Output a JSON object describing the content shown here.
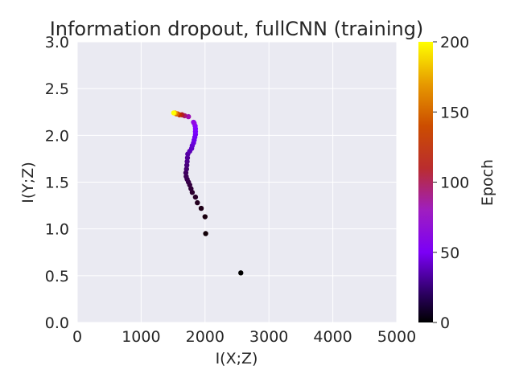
{
  "chart_data": {
    "type": "scatter",
    "title": "Information dropout, fullCNN (training)",
    "xlabel": "I(X;Z)",
    "ylabel": "I(Y;Z)",
    "xlim": [
      0,
      5000
    ],
    "ylim": [
      0,
      3.0
    ],
    "xticks": [
      0,
      1000,
      2000,
      3000,
      4000,
      5000
    ],
    "xtick_labels": [
      "0",
      "1000",
      "2000",
      "3000",
      "4000",
      "5000"
    ],
    "yticks": [
      0,
      0.5,
      1.0,
      1.5,
      2.0,
      2.5,
      3.0
    ],
    "ytick_labels": [
      "0.0",
      "0.5",
      "1.0",
      "1.5",
      "2.0",
      "2.5",
      "3.0"
    ],
    "grid": true,
    "background": "#EAEAF2",
    "colorbar": {
      "label": "Epoch",
      "range": [
        0,
        200
      ],
      "ticks": [
        0,
        50,
        100,
        150,
        200
      ],
      "tick_labels": [
        "0",
        "50",
        "100",
        "150",
        "200"
      ],
      "colormap": "gnuplot"
    },
    "points": [
      {
        "x": 2560,
        "y": 0.53,
        "epoch": 0
      },
      {
        "x": 2010,
        "y": 0.95,
        "epoch": 1
      },
      {
        "x": 2000,
        "y": 1.13,
        "epoch": 2
      },
      {
        "x": 1940,
        "y": 1.22,
        "epoch": 3
      },
      {
        "x": 1880,
        "y": 1.28,
        "epoch": 4
      },
      {
        "x": 1850,
        "y": 1.34,
        "epoch": 5
      },
      {
        "x": 1800,
        "y": 1.39,
        "epoch": 6
      },
      {
        "x": 1780,
        "y": 1.43,
        "epoch": 7
      },
      {
        "x": 1760,
        "y": 1.47,
        "epoch": 8
      },
      {
        "x": 1740,
        "y": 1.5,
        "epoch": 9
      },
      {
        "x": 1720,
        "y": 1.53,
        "epoch": 10
      },
      {
        "x": 1705,
        "y": 1.56,
        "epoch": 11
      },
      {
        "x": 1700,
        "y": 1.6,
        "epoch": 12
      },
      {
        "x": 1710,
        "y": 1.64,
        "epoch": 14
      },
      {
        "x": 1715,
        "y": 1.68,
        "epoch": 16
      },
      {
        "x": 1720,
        "y": 1.72,
        "epoch": 18
      },
      {
        "x": 1725,
        "y": 1.76,
        "epoch": 20
      },
      {
        "x": 1730,
        "y": 1.8,
        "epoch": 22
      },
      {
        "x": 1760,
        "y": 1.83,
        "epoch": 25
      },
      {
        "x": 1790,
        "y": 1.86,
        "epoch": 28
      },
      {
        "x": 1800,
        "y": 1.89,
        "epoch": 30
      },
      {
        "x": 1820,
        "y": 1.92,
        "epoch": 33
      },
      {
        "x": 1830,
        "y": 1.95,
        "epoch": 36
      },
      {
        "x": 1840,
        "y": 1.98,
        "epoch": 39
      },
      {
        "x": 1850,
        "y": 2.01,
        "epoch": 42
      },
      {
        "x": 1850,
        "y": 2.04,
        "epoch": 46
      },
      {
        "x": 1850,
        "y": 2.07,
        "epoch": 50
      },
      {
        "x": 1845,
        "y": 2.1,
        "epoch": 55
      },
      {
        "x": 1830,
        "y": 2.13,
        "epoch": 60
      },
      {
        "x": 1820,
        "y": 2.14,
        "epoch": 65
      },
      {
        "x": 1740,
        "y": 2.2,
        "epoch": 75
      },
      {
        "x": 1680,
        "y": 2.21,
        "epoch": 85
      },
      {
        "x": 1640,
        "y": 2.22,
        "epoch": 95
      },
      {
        "x": 1600,
        "y": 2.22,
        "epoch": 110
      },
      {
        "x": 1570,
        "y": 2.23,
        "epoch": 130
      },
      {
        "x": 1550,
        "y": 2.23,
        "epoch": 150
      },
      {
        "x": 1530,
        "y": 2.24,
        "epoch": 175
      },
      {
        "x": 1510,
        "y": 2.24,
        "epoch": 200
      }
    ]
  }
}
